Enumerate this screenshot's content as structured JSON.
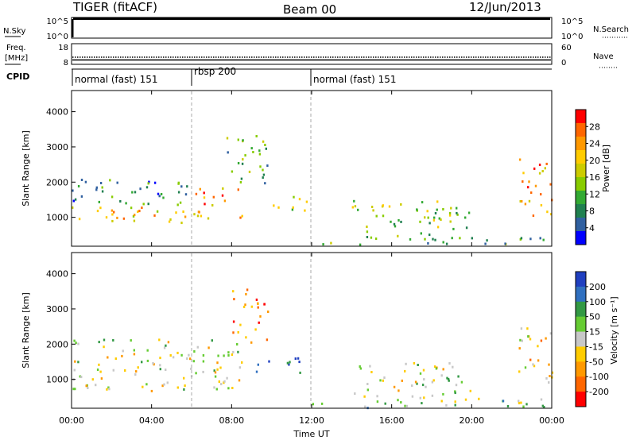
{
  "header": {
    "title": "TIGER (fitACF)",
    "beam": "Beam 00",
    "date": "12/Jun/2013"
  },
  "strip_panels": {
    "nsky_label": "N.Sky",
    "nsky_ticks": [
      "10^5",
      "10^0"
    ],
    "nsearch_label": "N.Search",
    "nsearch_ticks": [
      "10^5",
      "10^0"
    ],
    "freq_label_line1": "Freq.",
    "freq_label_line2": "[MHz]",
    "freq_ticks": [
      "18",
      "8"
    ],
    "nave_label": "Nave",
    "nave_ticks": [
      "60",
      "0"
    ],
    "cpid_label": "CPID"
  },
  "cpid_segments": [
    {
      "label": "normal (fast) 151",
      "start_hour": 0
    },
    {
      "label": "rbsp 200",
      "start_hour": 6
    },
    {
      "label": "normal (fast) 151",
      "start_hour": 12
    }
  ],
  "chart_data": [
    {
      "type": "heatmap",
      "parameter": "Power",
      "ylabel": "Slant Range [km]",
      "colorbar_label": "Power [dB]",
      "colorbar_ticks": [
        "28",
        "24",
        "20",
        "16",
        "12",
        "8",
        "4"
      ],
      "colorbar_colors": [
        "#ff0000",
        "#ff6600",
        "#ff9900",
        "#ffcc00",
        "#cccc00",
        "#88cc00",
        "#33aa33",
        "#208050",
        "#3060a0",
        "#0000ff"
      ],
      "yticks": [
        "4000",
        "3000",
        "2000",
        "1000"
      ],
      "ylim": [
        180,
        4600
      ],
      "xlim_hours": [
        0,
        24
      ],
      "scatter_regions": [
        {
          "t0": 0.0,
          "t1": 6.0,
          "r0": 850,
          "r1": 1350,
          "c": 0.65
        },
        {
          "t0": 0.0,
          "t1": 6.0,
          "r0": 1300,
          "r1": 2100,
          "c": 0.25
        },
        {
          "t0": 6.0,
          "t1": 8.5,
          "r0": 1000,
          "r1": 1900,
          "c": 0.75
        },
        {
          "t0": 7.5,
          "t1": 9.8,
          "r0": 2000,
          "r1": 3400,
          "c": 0.35
        },
        {
          "t0": 9.8,
          "t1": 11.8,
          "r0": 1200,
          "r1": 1700,
          "c": 0.6
        },
        {
          "t0": 12.0,
          "t1": 24.0,
          "r0": 250,
          "r1": 450,
          "c": 0.3
        },
        {
          "t0": 14.0,
          "t1": 20.0,
          "r0": 400,
          "r1": 1500,
          "c": 0.45
        },
        {
          "t0": 22.3,
          "t1": 24.0,
          "r0": 1000,
          "r1": 2700,
          "c": 0.8
        }
      ]
    },
    {
      "type": "heatmap",
      "parameter": "Velocity",
      "ylabel": "Slant Range [km]",
      "colorbar_label": "Velocity [m s⁻¹]",
      "colorbar_ticks": [
        "200",
        "100",
        "50",
        "15",
        "-15",
        "-50",
        "-100",
        "-200"
      ],
      "colorbar_colors": [
        "#2040c0",
        "#3070c0",
        "#339944",
        "#66cc33",
        "#c8c8c8",
        "#ffcc00",
        "#ff9900",
        "#ff6600",
        "#ff0000"
      ],
      "yticks": [
        "4000",
        "3000",
        "2000",
        "1000"
      ],
      "ylim": [
        180,
        4600
      ],
      "xlim_hours": [
        0,
        24
      ],
      "scatter_regions": [
        {
          "t0": 0.0,
          "t1": 8.5,
          "r0": 700,
          "r1": 2200,
          "c": 0.5
        },
        {
          "t0": 9.0,
          "t1": 11.5,
          "r0": 1200,
          "r1": 1700,
          "c": 0.9
        },
        {
          "t0": 8.0,
          "t1": 9.8,
          "r0": 2000,
          "r1": 3600,
          "c": 0.2
        },
        {
          "t0": 14.0,
          "t1": 20.0,
          "r0": 500,
          "r1": 1500,
          "c": 0.5
        },
        {
          "t0": 12.0,
          "t1": 24.0,
          "r0": 220,
          "r1": 500,
          "c": 0.6
        },
        {
          "t0": 22.3,
          "t1": 24.0,
          "r0": 900,
          "r1": 2600,
          "c": 0.35
        }
      ]
    }
  ],
  "x_axis": {
    "label": "Time UT",
    "ticks": [
      "00:00",
      "04:00",
      "08:00",
      "12:00",
      "16:00",
      "20:00",
      "00:00"
    ]
  }
}
